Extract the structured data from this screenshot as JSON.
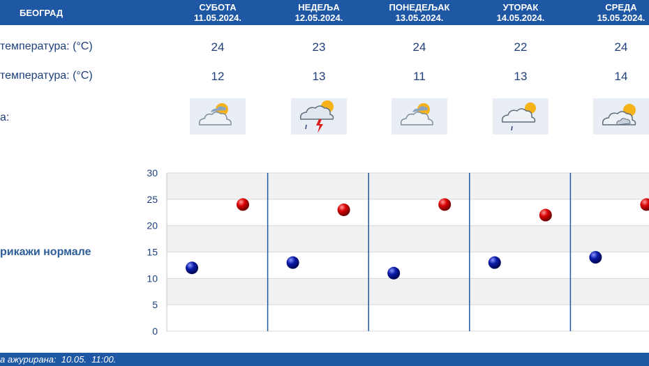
{
  "header": {
    "city": "БЕОГРАД"
  },
  "days": [
    {
      "name": "СУБОТА",
      "date": "11.05.2024.",
      "max": "24",
      "min": "12",
      "icon": "partly-cloudy-icon"
    },
    {
      "name": "НЕДЕЉА",
      "date": "12.05.2024.",
      "max": "23",
      "min": "13",
      "icon": "thunderstorm-rain-icon"
    },
    {
      "name": "ПОНЕДЕЉАК",
      "date": "13.05.2024.",
      "max": "24",
      "min": "11",
      "icon": "partly-cloudy-icon"
    },
    {
      "name": "УТОРАК",
      "date": "14.05.2024.",
      "max": "22",
      "min": "13",
      "icon": "cloudy-light-rain-icon"
    },
    {
      "name": "СРЕДА",
      "date": "15.05.2024.",
      "max": "24",
      "min": "14",
      "icon": "mostly-cloudy-icon"
    }
  ],
  "labels": {
    "max_temp": "температура: (°C)",
    "min_temp": "температура: (°C)",
    "weather": "а:",
    "show_normals": "рикажи нормале"
  },
  "chart_data": {
    "type": "scatter",
    "categories": [
      "11.05.2024.",
      "12.05.2024.",
      "13.05.2024.",
      "14.05.2024.",
      "15.05.2024."
    ],
    "ylim": [
      0,
      30
    ],
    "yticks": [
      "0",
      "5",
      "10",
      "15",
      "20",
      "25",
      "30"
    ],
    "grid": true,
    "series": [
      {
        "values": [
          24,
          23,
          24,
          22,
          24
        ],
        "color": "#cc0000"
      },
      {
        "values": [
          12,
          13,
          11,
          13,
          14
        ],
        "color": "#0a1aa8"
      }
    ]
  },
  "footer": {
    "text": "а ажурирана:  10.05.  11:00."
  }
}
